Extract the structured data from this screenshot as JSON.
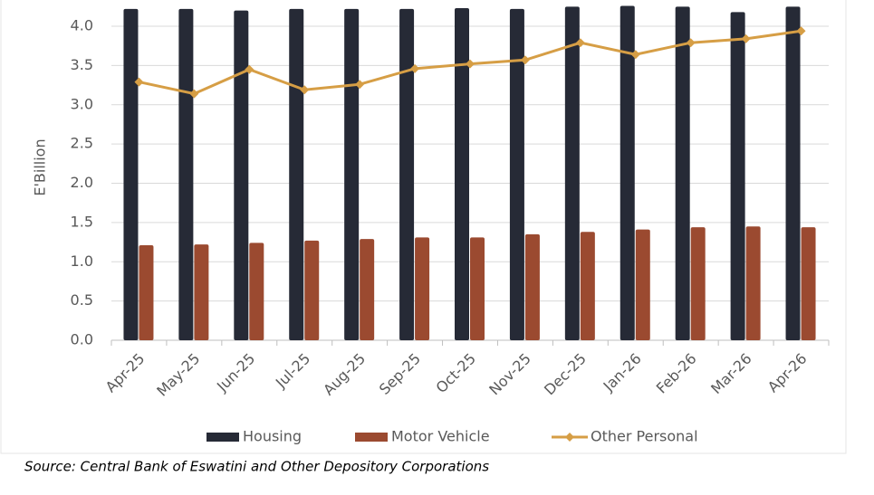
{
  "chart_data": {
    "type": "bar",
    "y_label": "E'Billion",
    "source": "Source: Central Bank of Eswatini and Other Depository Corporations",
    "categories": [
      "Apr-25",
      "May-25",
      "Jun-25",
      "Jul-25",
      "Aug-25",
      "Sep-25",
      "Oct-25",
      "Nov-25",
      "Dec-25",
      "Jan-26",
      "Feb-26",
      "Mar-26",
      "Apr-26"
    ],
    "series": [
      {
        "name": "Housing",
        "type": "bar",
        "color": "#262a36",
        "values": [
          4.22,
          4.22,
          4.2,
          4.22,
          4.22,
          4.22,
          4.23,
          4.22,
          4.25,
          4.26,
          4.25,
          4.18,
          4.25
        ]
      },
      {
        "name": "Motor Vehicle",
        "type": "bar",
        "color": "#9b4a30",
        "values": [
          1.21,
          1.22,
          1.24,
          1.27,
          1.29,
          1.31,
          1.31,
          1.35,
          1.38,
          1.41,
          1.44,
          1.45,
          1.44
        ]
      },
      {
        "name": "Other Personal",
        "type": "line",
        "color": "#d69e45",
        "values": [
          3.29,
          3.14,
          3.45,
          3.19,
          3.26,
          3.46,
          3.52,
          3.57,
          3.79,
          3.64,
          3.79,
          3.84,
          3.94
        ]
      }
    ],
    "ylim": [
      0,
      4.5
    ],
    "yticks": [
      {
        "value": 0,
        "label": "0.0"
      },
      {
        "value": 0.5,
        "label": "0.5"
      },
      {
        "value": 1,
        "label": "1.0"
      },
      {
        "value": 1.5,
        "label": "1.5"
      },
      {
        "value": 2,
        "label": "2.0"
      },
      {
        "value": 2.5,
        "label": "2.5"
      },
      {
        "value": 3,
        "label": "3.0"
      },
      {
        "value": 3.5,
        "label": "3.5"
      },
      {
        "value": 4,
        "label": "4.0"
      }
    ],
    "grid": true
  }
}
